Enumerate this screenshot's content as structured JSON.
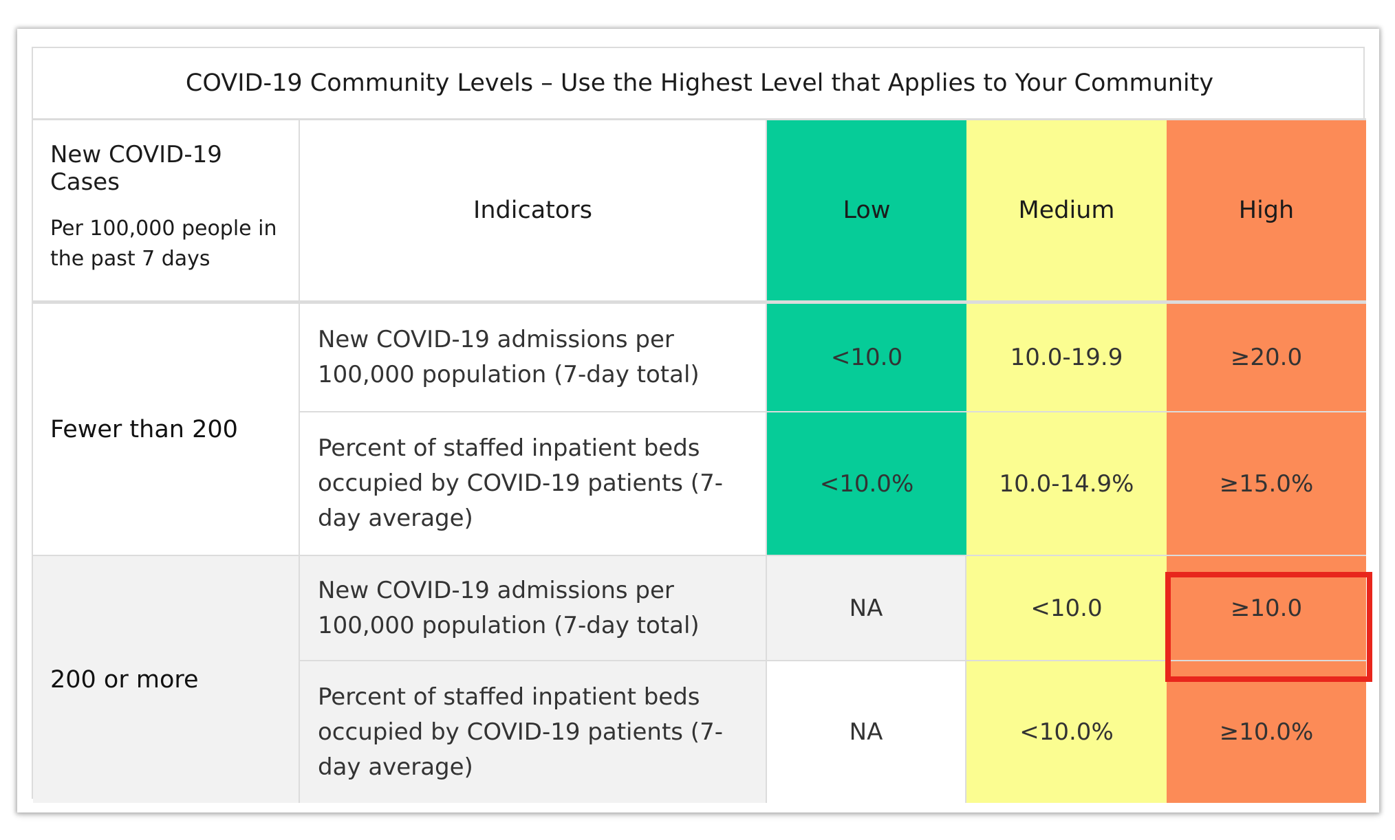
{
  "table": {
    "title": "COVID-19 Community Levels – Use the Highest Level that Applies to Your Community",
    "header": {
      "cases_title": "New COVID-19 Cases",
      "cases_subtitle": "Per 100,000 people in the past 7 days",
      "indicators": "Indicators",
      "low": "Low",
      "medium": "Medium",
      "high": "High"
    },
    "groups": [
      {
        "label": "Fewer than 200",
        "rows": [
          {
            "indicator": "New COVID-19 admissions per 100,000 population (7-day total)",
            "low": "<10.0",
            "medium": "10.0-19.9",
            "high": "≥20.0"
          },
          {
            "indicator": "Percent of staffed inpatient beds occupied by COVID-19 patients (7-day average)",
            "low": "<10.0%",
            "medium": "10.0-14.9%",
            "high": "≥15.0%"
          }
        ]
      },
      {
        "label": "200 or more",
        "rows": [
          {
            "indicator": "New COVID-19 admissions per 100,000 population (7-day total)",
            "low": "NA",
            "medium": "<10.0",
            "high": "≥10.0"
          },
          {
            "indicator": "Percent of staffed inpatient beds occupied by COVID-19 patients (7-day average)",
            "low": "NA",
            "medium": "<10.0%",
            "high": "≥10.0%"
          }
        ]
      }
    ]
  },
  "colors": {
    "low": "#06cc98",
    "medium": "#fbfd91",
    "high": "#fc8b57",
    "gray": "#f2f2f2",
    "highlight": "#e8261c"
  }
}
